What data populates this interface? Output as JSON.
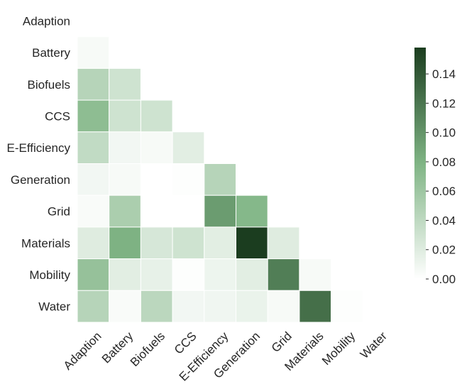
{
  "chart_data": {
    "type": "heatmap",
    "title": "",
    "xlabel": "",
    "ylabel": "",
    "mask": "upper-triangle-including-diagonal",
    "rows": [
      "Adaption",
      "Battery",
      "Biofuels",
      "CCS",
      "E-Efficiency",
      "Generation",
      "Grid",
      "Materials",
      "Mobility",
      "Water"
    ],
    "columns": [
      "Adaption",
      "Battery",
      "Biofuels",
      "CCS",
      "E-Efficiency",
      "Generation",
      "Grid",
      "Materials",
      "Mobility",
      "Water"
    ],
    "values": [
      [
        null,
        null,
        null,
        null,
        null,
        null,
        null,
        null,
        null,
        null
      ],
      [
        0.005,
        null,
        null,
        null,
        null,
        null,
        null,
        null,
        null,
        null
      ],
      [
        0.045,
        0.03,
        null,
        null,
        null,
        null,
        null,
        null,
        null,
        null
      ],
      [
        0.07,
        0.03,
        0.03,
        null,
        null,
        null,
        null,
        null,
        null,
        null
      ],
      [
        0.038,
        0.008,
        0.005,
        0.018,
        null,
        null,
        null,
        null,
        null,
        null
      ],
      [
        0.008,
        0.005,
        0.0,
        0.001,
        0.045,
        null,
        null,
        null,
        null,
        null
      ],
      [
        0.004,
        0.052,
        0.0,
        0.0,
        0.095,
        0.075,
        null,
        null,
        null,
        null
      ],
      [
        0.02,
        0.08,
        0.025,
        0.03,
        0.018,
        0.158,
        0.02,
        null,
        null,
        null
      ],
      [
        0.065,
        0.018,
        0.015,
        0.001,
        0.011,
        0.018,
        0.115,
        0.005,
        null,
        null
      ],
      [
        0.045,
        0.004,
        0.042,
        0.008,
        0.009,
        0.013,
        0.005,
        0.125,
        0.001,
        null
      ]
    ],
    "colorbar": {
      "min": 0.0,
      "max": 0.158,
      "ticks": [
        0.0,
        0.02,
        0.04,
        0.06,
        0.08,
        0.1,
        0.12,
        0.14
      ],
      "tick_labels": [
        "0.00",
        "0.02",
        "0.04",
        "0.06",
        "0.08",
        "0.10",
        "0.12",
        "0.14"
      ]
    },
    "colors": {
      "low": "#ffffff",
      "mid": "#7fb484",
      "high": "#1b3d1f",
      "cell_border": "#ffffff"
    }
  }
}
